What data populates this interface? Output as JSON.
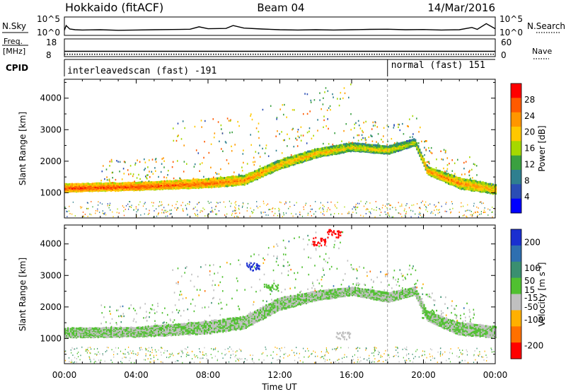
{
  "chart_data": {
    "type": "heatmap",
    "title": "Hokkaido (fitACF)",
    "beam": "Beam 04",
    "date": "14/Mar/2016",
    "xlabel": "Time UT",
    "x_ticks": [
      "00:00",
      "04:00",
      "08:00",
      "12:00",
      "16:00",
      "20:00",
      "00:00"
    ],
    "xlim_hours": [
      0,
      24
    ],
    "mode_change_hour": 18,
    "header_panels": {
      "nsky": {
        "label": "N.Sky",
        "right_label": "N.Search",
        "ticks_left": [
          "10^5",
          "10^0"
        ],
        "ticks_right": [
          "10^5",
          "10^0"
        ],
        "profile": [
          [
            0,
            0.18
          ],
          [
            0.1,
            0.55
          ],
          [
            0.3,
            0.28
          ],
          [
            0.6,
            0.22
          ],
          [
            1,
            0.2
          ],
          [
            2,
            0.22
          ],
          [
            3,
            0.18
          ],
          [
            4,
            0.2
          ],
          [
            5,
            0.22
          ],
          [
            6,
            0.24
          ],
          [
            7,
            0.26
          ],
          [
            7.5,
            0.45
          ],
          [
            8,
            0.3
          ],
          [
            9,
            0.32
          ],
          [
            9.4,
            0.55
          ],
          [
            10,
            0.35
          ],
          [
            11,
            0.28
          ],
          [
            12,
            0.22
          ],
          [
            13,
            0.2
          ],
          [
            14,
            0.22
          ],
          [
            15,
            0.2
          ],
          [
            16,
            0.22
          ],
          [
            17,
            0.25
          ],
          [
            18,
            0.26
          ],
          [
            19,
            0.22
          ],
          [
            20,
            0.24
          ],
          [
            21,
            0.2
          ],
          [
            22,
            0.22
          ],
          [
            22.7,
            0.4
          ],
          [
            23,
            0.25
          ],
          [
            23.5,
            0.7
          ],
          [
            24,
            0.3
          ]
        ]
      },
      "freq": {
        "label": "Freq.",
        "unit": "[MHz]",
        "right_label": "Nave",
        "ticks_left": [
          "18",
          "8"
        ],
        "ticks_right": [
          "60",
          "0"
        ],
        "freq_value_mhz": 11,
        "nave_value": 8
      },
      "cpid": {
        "label": "CPID",
        "segments": [
          {
            "start": 0,
            "end": 18,
            "text": "interleavedscan (fast) -191"
          },
          {
            "start": 18,
            "end": 24,
            "text": "normal (fast) 151"
          }
        ]
      }
    },
    "panels": [
      {
        "id": "power",
        "ylabel": "Slant Range [km]",
        "ylim_km": [
          200,
          4600
        ],
        "y_ticks": [
          1000,
          2000,
          3000,
          4000
        ],
        "colorbar": {
          "label": "Power [dB]",
          "tick_labels": [
            "28",
            "24",
            "20",
            "16",
            "12",
            "8",
            "4"
          ],
          "tick_values": [
            28,
            24,
            20,
            16,
            12,
            8,
            4
          ],
          "range": [
            0,
            32
          ],
          "colors": [
            "#ff0000",
            "#ff5a00",
            "#ff9600",
            "#ffc800",
            "#a6d800",
            "#3aa040",
            "#2f7f8f",
            "#2a4db5",
            "#0000ff"
          ]
        },
        "main_band": {
          "description": "strong echo band",
          "points": [
            {
              "hour": 0,
              "center_km": 1150,
              "width_km": 250,
              "power_db": 28
            },
            {
              "hour": 4,
              "center_km": 1200,
              "width_km": 250,
              "power_db": 28
            },
            {
              "hour": 8,
              "center_km": 1300,
              "width_km": 280,
              "power_db": 26
            },
            {
              "hour": 10,
              "center_km": 1400,
              "width_km": 300,
              "power_db": 24
            },
            {
              "hour": 12,
              "center_km": 1900,
              "width_km": 300,
              "power_db": 22
            },
            {
              "hour": 14,
              "center_km": 2250,
              "width_km": 280,
              "power_db": 22
            },
            {
              "hour": 16,
              "center_km": 2450,
              "width_km": 260,
              "power_db": 20
            },
            {
              "hour": 18,
              "center_km": 2350,
              "width_km": 260,
              "power_db": 20
            },
            {
              "hour": 19.5,
              "center_km": 2600,
              "width_km": 220,
              "power_db": 18
            },
            {
              "hour": 20.2,
              "center_km": 1700,
              "width_km": 250,
              "power_db": 24
            },
            {
              "hour": 22,
              "center_km": 1300,
              "width_km": 350,
              "power_db": 24
            },
            {
              "hour": 24,
              "center_km": 1100,
              "width_km": 300,
              "power_db": 22
            }
          ]
        }
      },
      {
        "id": "velocity",
        "ylabel": "Slant Range [km]",
        "ylim_km": [
          200,
          4600
        ],
        "y_ticks": [
          1000,
          2000,
          3000,
          4000
        ],
        "colorbar": {
          "label": "Velocity [m s^-1]",
          "tick_labels": [
            "200",
            "100",
            "50",
            "15",
            "-15",
            "-50",
            "-100",
            "-200"
          ],
          "tick_values": [
            200,
            100,
            50,
            15,
            -15,
            -50,
            -100,
            -200
          ],
          "range": [
            -250,
            250
          ],
          "colors": [
            "#1a2fd0",
            "#2e6fb0",
            "#3a8f70",
            "#50c030",
            "#c0c0c0",
            "#ffb000",
            "#ff7000",
            "#ff0000"
          ]
        },
        "main_band": {
          "description": "ground scatter band (near-zero velocity)",
          "points": [
            {
              "hour": 0,
              "center_km": 1180,
              "width_km": 300,
              "velocity": 0
            },
            {
              "hour": 4,
              "center_km": 1200,
              "width_km": 300,
              "velocity": 0
            },
            {
              "hour": 8,
              "center_km": 1350,
              "width_km": 400,
              "velocity": 0
            },
            {
              "hour": 10,
              "center_km": 1500,
              "width_km": 400,
              "velocity": 0
            },
            {
              "hour": 12,
              "center_km": 2100,
              "width_km": 400,
              "velocity": 0
            },
            {
              "hour": 14,
              "center_km": 2350,
              "width_km": 300,
              "velocity": 0
            },
            {
              "hour": 16,
              "center_km": 2500,
              "width_km": 250,
              "velocity": 0
            },
            {
              "hour": 18,
              "center_km": 2300,
              "width_km": 300,
              "velocity": 0
            },
            {
              "hour": 19.5,
              "center_km": 2500,
              "width_km": 250,
              "velocity": 0
            },
            {
              "hour": 20.2,
              "center_km": 1700,
              "width_km": 300,
              "velocity": 0
            },
            {
              "hour": 22,
              "center_km": 1300,
              "width_km": 400,
              "velocity": 0
            },
            {
              "hour": 24,
              "center_km": 1200,
              "width_km": 350,
              "velocity": 0
            }
          ]
        },
        "features": [
          {
            "hour": 10.5,
            "range_km": 3300,
            "velocity": 200
          },
          {
            "hour": 11.5,
            "range_km": 2650,
            "velocity": 50
          },
          {
            "hour": 14.2,
            "range_km": 4100,
            "velocity": -200
          },
          {
            "hour": 15.0,
            "range_km": 4350,
            "velocity": -200
          },
          {
            "hour": 20.3,
            "range_km": 1800,
            "velocity": 50
          },
          {
            "hour": 15.5,
            "range_km": 1100,
            "velocity": -50
          }
        ]
      }
    ]
  }
}
